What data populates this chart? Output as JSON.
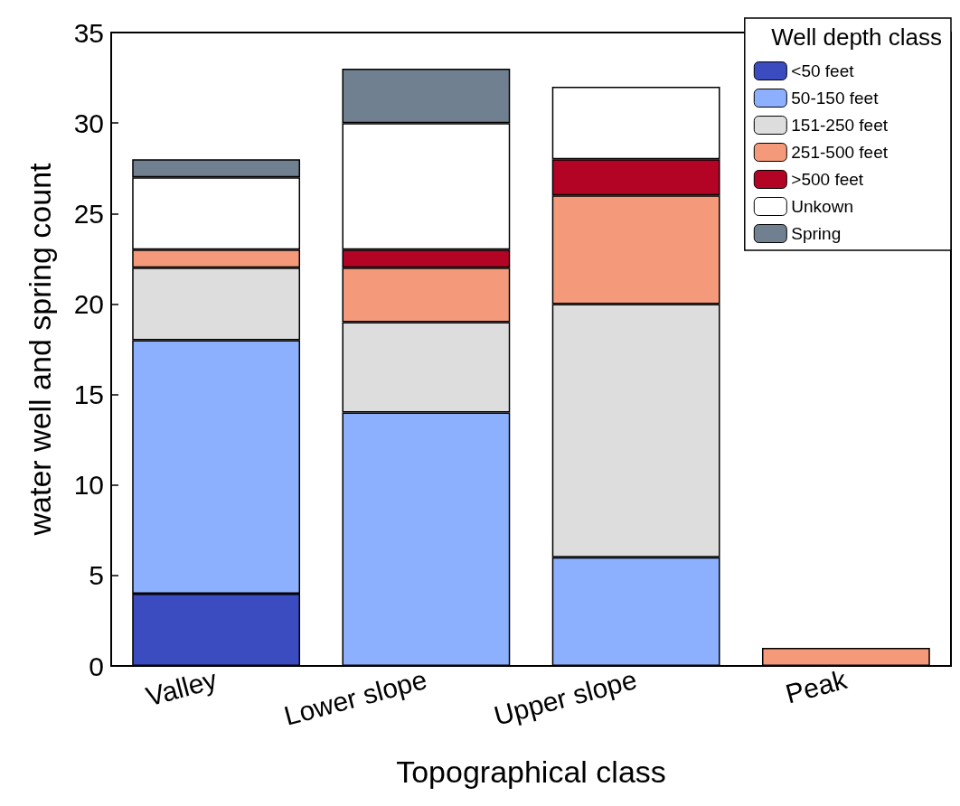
{
  "chart_data": {
    "type": "bar",
    "stacked": true,
    "xlabel": "Topographical class",
    "ylabel": "water well and spring count",
    "legend_title": "Well depth class",
    "legend": "top right",
    "grid": false,
    "categories": [
      "Valley",
      "Lower slope",
      "Upper slope",
      "Peak"
    ],
    "ylim": [
      0,
      35
    ],
    "yticks": [
      0,
      5,
      10,
      15,
      20,
      25,
      30,
      35
    ],
    "series": [
      {
        "name": "<50 feet",
        "color": "#3b4cc0",
        "values": [
          4,
          0,
          0,
          0
        ]
      },
      {
        "name": "50-150 feet",
        "color": "#8db0fe",
        "values": [
          14,
          14,
          6,
          0
        ]
      },
      {
        "name": "151-250 feet",
        "color": "#dddddd",
        "values": [
          4,
          5,
          14,
          0
        ]
      },
      {
        "name": "251-500 feet",
        "color": "#f49a7b",
        "values": [
          1,
          3,
          6,
          1
        ]
      },
      {
        "name": ">500 feet",
        "color": "#b40426",
        "values": [
          0,
          1,
          2,
          0
        ]
      },
      {
        "name": "Unkown",
        "color": "#ffffff",
        "values": [
          4,
          7,
          4,
          0
        ]
      },
      {
        "name": "Spring",
        "color": "#708090",
        "values": [
          1,
          3,
          0,
          0
        ]
      }
    ]
  }
}
